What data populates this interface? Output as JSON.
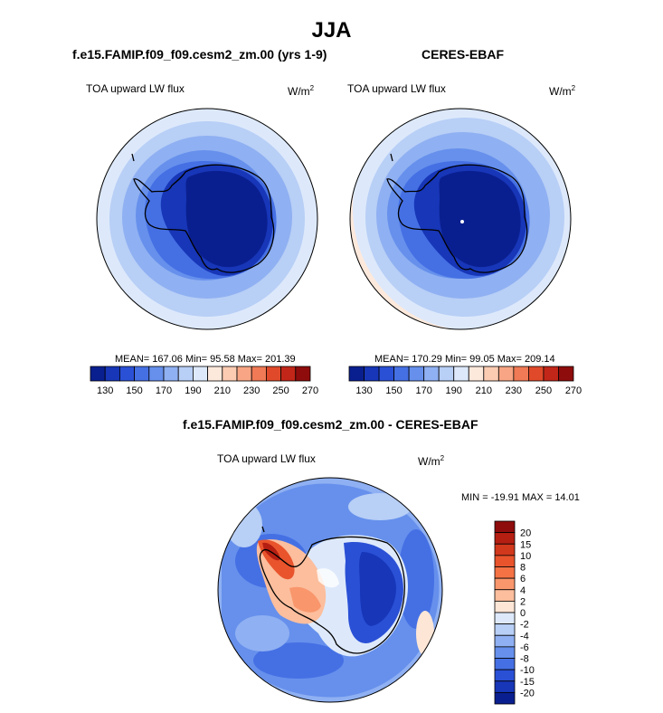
{
  "main_title": "JJA",
  "panels": [
    {
      "title": "f.e15.FAMIP.f09_f09.cesm2_zm.00 (yrs 1-9)",
      "var_label": "TOA upward LW flux",
      "unit_base": "W/m",
      "unit_exp": "2",
      "stats": "MEAN= 167.06  Min=  95.58  Max= 201.39"
    },
    {
      "title": "CERES-EBAF",
      "var_label": "TOA upward LW flux",
      "unit_base": "W/m",
      "unit_exp": "2",
      "stats": "MEAN= 170.29  Min=  99.05  Max= 209.14"
    },
    {
      "title": "f.e15.FAMIP.f09_f09.cesm2_zm.00 - CERES-EBAF",
      "var_label": "TOA upward LW flux",
      "unit_base": "W/m",
      "unit_exp": "2",
      "stats": "MIN = -19.91 MAX =  14.01"
    }
  ],
  "chart_data": [
    {
      "type": "heatmap",
      "projection": "south-polar-stereographic",
      "variable": "TOA upward LW flux",
      "levels": [
        130,
        140,
        150,
        160,
        170,
        180,
        190,
        200,
        210,
        220,
        230,
        240,
        250,
        260,
        270
      ],
      "colorbar_ticks": [
        "130",
        "150",
        "170",
        "190",
        "210",
        "230",
        "250",
        "270"
      ],
      "colorbar_colors": [
        "#0a1f8f",
        "#1736b8",
        "#2a50d6",
        "#4570e4",
        "#6690ec",
        "#8fb0f2",
        "#b8cff6",
        "#dde9fb",
        "#fde9dc",
        "#fbcbb2",
        "#f7a584",
        "#ef7a55",
        "#e04a2a",
        "#c22618",
        "#8e0c0c"
      ],
      "mean": 167.06,
      "min": 95.58,
      "max": 201.39
    },
    {
      "type": "heatmap",
      "projection": "south-polar-stereographic",
      "variable": "TOA upward LW flux",
      "levels": [
        130,
        140,
        150,
        160,
        170,
        180,
        190,
        200,
        210,
        220,
        230,
        240,
        250,
        260,
        270
      ],
      "colorbar_ticks": [
        "130",
        "150",
        "170",
        "190",
        "210",
        "230",
        "250",
        "270"
      ],
      "colorbar_colors": [
        "#0a1f8f",
        "#1736b8",
        "#2a50d6",
        "#4570e4",
        "#6690ec",
        "#8fb0f2",
        "#b8cff6",
        "#dde9fb",
        "#fde9dc",
        "#fbcbb2",
        "#f7a584",
        "#ef7a55",
        "#e04a2a",
        "#c22618",
        "#8e0c0c"
      ],
      "mean": 170.29,
      "min": 99.05,
      "max": 209.14
    },
    {
      "type": "heatmap",
      "projection": "south-polar-stereographic",
      "variable": "TOA upward LW flux difference",
      "levels": [
        -20,
        -15,
        -10,
        -8,
        -6,
        -4,
        -2,
        0,
        2,
        4,
        6,
        8,
        10,
        15,
        20
      ],
      "colorbar_ticks": [
        "20",
        "15",
        "10",
        "8",
        "6",
        "4",
        "2",
        "0",
        "-2",
        "-4",
        "-6",
        "-8",
        "-10",
        "-15",
        "-20"
      ],
      "colorbar_colors_top_to_bottom": [
        "#8e0c0c",
        "#b51f12",
        "#d2381c",
        "#e9542c",
        "#f57245",
        "#f9966c",
        "#fcbe9d",
        "#fde6d6",
        "#dde9fb",
        "#b8cff6",
        "#8fb0f2",
        "#6690ec",
        "#4570e4",
        "#2a50d6",
        "#1736b8",
        "#0a1f8f"
      ],
      "min": -19.91,
      "max": 14.01
    }
  ]
}
